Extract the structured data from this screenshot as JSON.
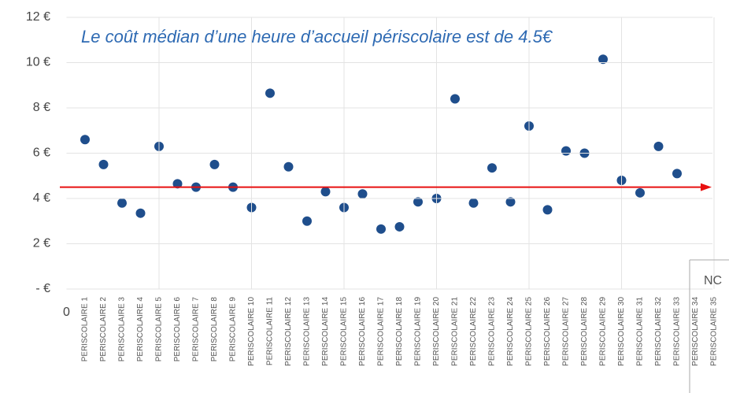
{
  "chart_data": {
    "type": "scatter",
    "annotation": "Le coût médian d’une heure d’accueil périscolaire est de 4.5€",
    "categories": [
      "PERISCOLAIRE 1",
      "PERISCOLAIRE 2",
      "PERISCOLAIRE 3",
      "PERISCOLAIRE 4",
      "PERISCOLAIRE 5",
      "PERISCOLAIRE 6",
      "PERISCOLAIRE 7",
      "PERISCOLAIRE 8",
      "PERISCOLAIRE 9",
      "PERISCOLAIRE 10",
      "PERISCOLAIRE 11",
      "PERISCOLAIRE 12",
      "PERISCOLAIRE 13",
      "PERISCOLAIRE 14",
      "PERISCOLAIRE 15",
      "PERISCOLAIRE 16",
      "PERISCOLAIRE 17",
      "PERISCOLAIRE 18",
      "PERISCOLAIRE 19",
      "PERISCOLAIRE 20",
      "PERISCOLAIRE 21",
      "PERISCOLAIRE 22",
      "PERISCOLAIRE 23",
      "PERISCOLAIRE 24",
      "PERISCOLAIRE 25",
      "PERISCOLAIRE 26",
      "PERISCOLAIRE 27",
      "PERISCOLAIRE 28",
      "PERISCOLAIRE 29",
      "PERISCOLAIRE 30",
      "PERISCOLAIRE 31",
      "PERISCOLAIRE 32",
      "PERISCOLAIRE 33",
      "PERISCOLAIRE 34",
      "PERISCOLAIRE 35"
    ],
    "values": [
      6.6,
      5.5,
      3.8,
      3.35,
      6.3,
      4.65,
      4.5,
      5.5,
      4.5,
      3.6,
      8.65,
      5.4,
      3.0,
      4.3,
      3.6,
      4.2,
      2.65,
      2.75,
      3.85,
      4.0,
      8.4,
      3.8,
      5.35,
      3.85,
      7.2,
      3.5,
      6.1,
      6.0,
      10.15,
      4.8,
      4.25,
      6.3,
      5.1,
      null,
      null
    ],
    "color": "#1f4e8c",
    "median": 4.5,
    "median_color": "#e81010",
    "ylim": [
      0,
      12
    ],
    "yticks": [
      {
        "value": 0,
        "label": "-  €"
      },
      {
        "value": 2,
        "label": "2 €"
      },
      {
        "value": 4,
        "label": "4 €"
      },
      {
        "value": 6,
        "label": "6 €"
      },
      {
        "value": 8,
        "label": "8 €"
      },
      {
        "value": 10,
        "label": "10 €"
      },
      {
        "value": 12,
        "label": "12 €"
      }
    ],
    "xticks": [
      0
    ],
    "nc_label": "NC",
    "grid": true
  }
}
